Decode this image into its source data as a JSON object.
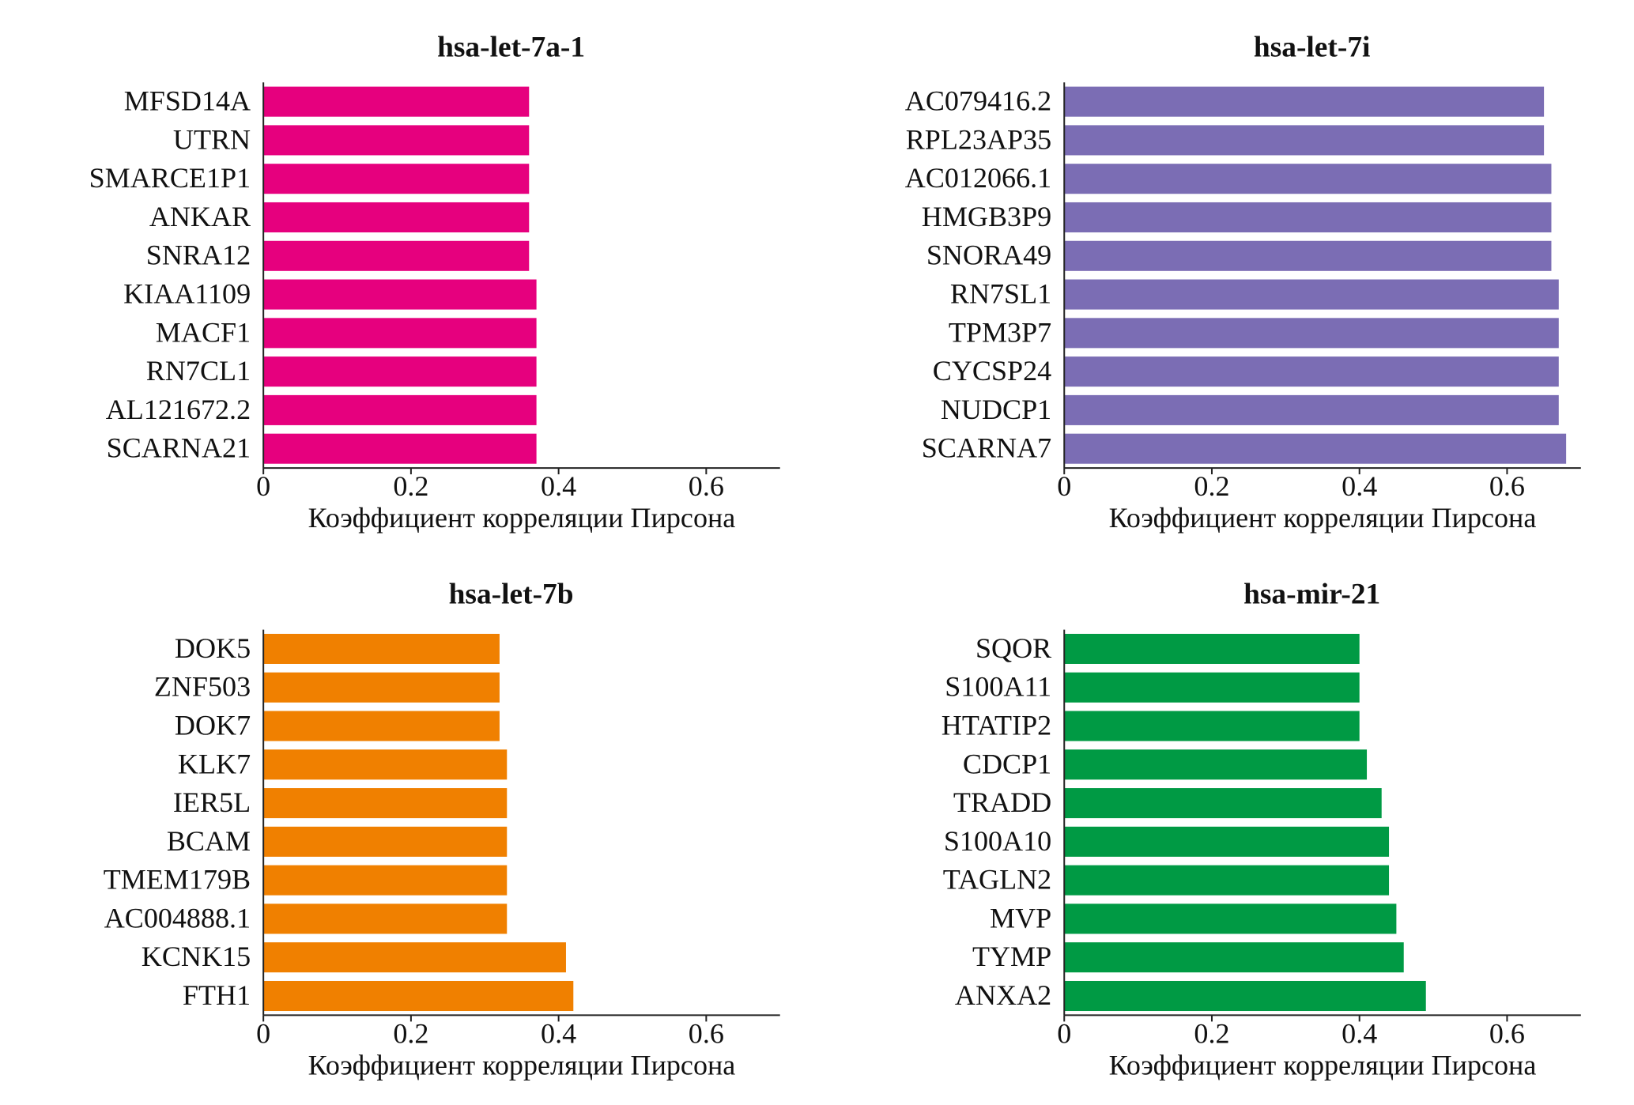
{
  "chart_data": [
    {
      "type": "bar",
      "title": "hsa-let-7a-1",
      "xlabel": "Коэффициент корреляции Пирсона",
      "categories": [
        "MFSD14A",
        "UTRN",
        "SMARCE1P1",
        "ANKAR",
        "SNRA12",
        "KIAA1109",
        "MACF1",
        "RN7CL1",
        "AL121672.2",
        "SCARNA21"
      ],
      "values": [
        0.36,
        0.36,
        0.36,
        0.36,
        0.36,
        0.37,
        0.37,
        0.37,
        0.37,
        0.37
      ],
      "color": "#e6007e",
      "xlim": [
        0,
        0.7
      ],
      "xticks": [
        0,
        0.2,
        0.4,
        0.6
      ]
    },
    {
      "type": "bar",
      "title": "hsa-let-7i",
      "xlabel": "Коэффициент корреляции Пирсона",
      "categories": [
        "AC079416.2",
        "RPL23AP35",
        "AC012066.1",
        "HMGB3P9",
        "SNORA49",
        "RN7SL1",
        "TPM3P7",
        "CYCSP24",
        "NUDCP1",
        "SCARNA7"
      ],
      "values": [
        0.65,
        0.65,
        0.66,
        0.66,
        0.66,
        0.67,
        0.67,
        0.67,
        0.67,
        0.68
      ],
      "color": "#7b6db4",
      "xlim": [
        0,
        0.7
      ],
      "xticks": [
        0,
        0.2,
        0.4,
        0.6
      ]
    },
    {
      "type": "bar",
      "title": "hsa-let-7b",
      "xlabel": "Коэффициент корреляции Пирсона",
      "categories": [
        "DOK5",
        "ZNF503",
        "DOK7",
        "KLK7",
        "IER5L",
        "BCAM",
        "TMEM179B",
        "AC004888.1",
        "KCNK15",
        "FTH1"
      ],
      "values": [
        0.32,
        0.32,
        0.32,
        0.33,
        0.33,
        0.33,
        0.33,
        0.33,
        0.41,
        0.42
      ],
      "color": "#f08000",
      "xlim": [
        0,
        0.7
      ],
      "xticks": [
        0,
        0.2,
        0.4,
        0.6
      ]
    },
    {
      "type": "bar",
      "title": "hsa-mir-21",
      "xlabel": "Коэффициент корреляции Пирсона",
      "categories": [
        "SQOR",
        "S100A11",
        "HTATIP2",
        "CDCP1",
        "TRADD",
        "S100A10",
        "TAGLN2",
        "MVP",
        "TYMP",
        "ANXA2"
      ],
      "values": [
        0.4,
        0.4,
        0.4,
        0.41,
        0.43,
        0.44,
        0.44,
        0.45,
        0.46,
        0.49
      ],
      "color": "#009a44",
      "xlim": [
        0,
        0.7
      ],
      "xticks": [
        0,
        0.2,
        0.4,
        0.6
      ]
    }
  ]
}
